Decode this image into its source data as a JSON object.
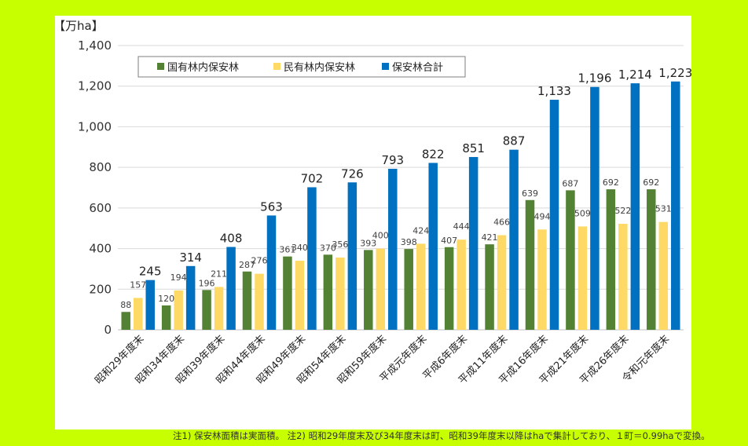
{
  "chart_data": {
    "type": "bar",
    "unit_label": "【万ha】",
    "ylim": [
      0,
      1400
    ],
    "yticks": [
      0,
      200,
      400,
      600,
      800,
      1000,
      1200,
      1400
    ],
    "grid": true,
    "legend_position": "top-left",
    "categories": [
      "昭和29年度末",
      "昭和34年度末",
      "昭和39年度末",
      "昭和44年度末",
      "昭和49年度末",
      "昭和54年度末",
      "昭和59年度末",
      "平成元年度末",
      "平成6年度末",
      "平成11年度末",
      "平成16年度末",
      "平成21年度末",
      "平成26年度末",
      "令和元年度末"
    ],
    "series": [
      {
        "name": "国有林内保安林",
        "color": "#548235",
        "values": [
          88,
          120,
          196,
          287,
          361,
          370,
          393,
          398,
          407,
          421,
          639,
          687,
          692,
          692
        ]
      },
      {
        "name": "民有林内保安林",
        "color": "#ffd966",
        "values": [
          157,
          194,
          211,
          276,
          340,
          356,
          400,
          424,
          444,
          466,
          494,
          509,
          522,
          531
        ]
      },
      {
        "name": "保安林合計",
        "color": "#0070c0",
        "values": [
          245,
          314,
          408,
          563,
          702,
          726,
          793,
          822,
          851,
          887,
          1133,
          1196,
          1214,
          1223
        ]
      }
    ]
  },
  "footnote": "注1) 保安林面積は実面積。 注2) 昭和29年度末及び34年度末は町、昭和39年度末以降はhaで集計しており、１町＝0.99haで変換。"
}
